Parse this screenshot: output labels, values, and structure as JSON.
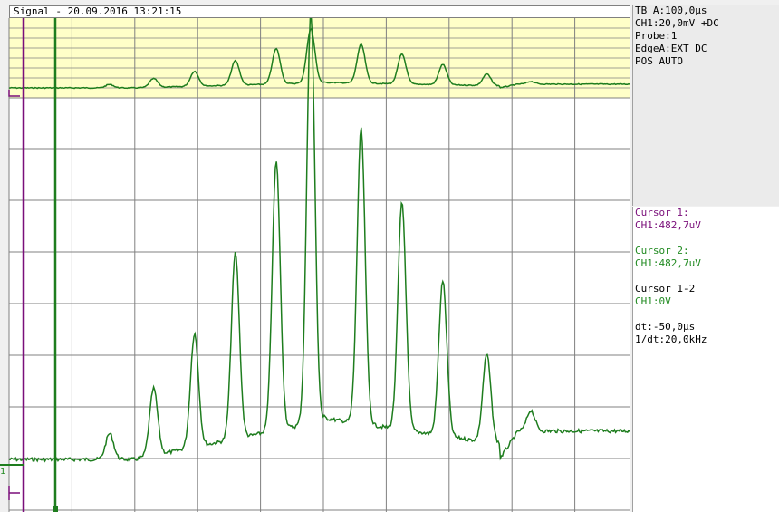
{
  "window": {
    "title": "Signal - 20.09.2016 13:21:15"
  },
  "info": {
    "timebase": "TB A:100,0µs",
    "channel": "CH1:20,0mV +DC",
    "probe": "Probe:1",
    "edge": "EdgeA:EXT DC",
    "pos": "POS AUTO"
  },
  "cursors": {
    "c1_label": "Cursor 1:",
    "c1_value": "CH1:482,7uV",
    "c2_label": "Cursor 2:",
    "c2_value": "CH1:482,7uV",
    "diff_label": "Cursor 1-2",
    "diff_value": "CH1:0V",
    "dt": "dt:-50,0µs",
    "inv_dt": "1/dt:20,0kHz"
  },
  "markers": {
    "channel_marker": "1"
  },
  "colors": {
    "trace": "#1e7d1e",
    "cursor1": "#7a0f7a",
    "cursor2": "#1e7d1e",
    "overview_bg": "#ffffc8",
    "grid": "#808080"
  },
  "chart_data": {
    "type": "line",
    "grid": true,
    "peaks": [
      {
        "x_div": 1.6,
        "level_div": 0.5
      },
      {
        "x_div": 2.3,
        "level_div": 1.3
      },
      {
        "x_div": 2.95,
        "level_div": 2.2
      },
      {
        "x_div": 3.6,
        "level_div": 3.6
      },
      {
        "x_div": 4.25,
        "level_div": 5.2
      },
      {
        "x_div": 4.8,
        "level_div": 8.0
      },
      {
        "x_div": 5.6,
        "level_div": 5.7
      },
      {
        "x_div": 6.25,
        "level_div": 4.4
      },
      {
        "x_div": 6.9,
        "level_div": 3.0
      },
      {
        "x_div": 7.6,
        "level_div": 1.7
      },
      {
        "x_div": 8.3,
        "level_div": 0.4
      }
    ]
  }
}
